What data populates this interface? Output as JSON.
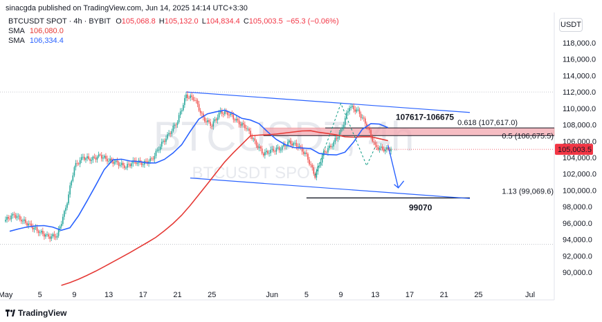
{
  "header": {
    "publisher": "sinacgda published on TradingView.com, Jun 14, 2025 14:14 UTC+3:30"
  },
  "symbol": {
    "name": "BTCUSDT SPOT · 4h · BYBIT",
    "o_label": "O",
    "o": "105,068.8",
    "h_label": "H",
    "h": "105,132.0",
    "l_label": "L",
    "l": "104,834.4",
    "c_label": "C",
    "c": "105,003.5",
    "change": "−65.3 (−0.06%)"
  },
  "indicators": [
    {
      "label": "SMA",
      "value": "106,080.0",
      "color": "#e53935"
    },
    {
      "label": "SMA",
      "value": "106,334.4",
      "color": "#2962ff"
    }
  ],
  "currency": "USDT",
  "watermark": {
    "main": "BTCUSDT, 4h",
    "sub": "BTCUSDT SPOT"
  },
  "brand": "TradingView",
  "chart_data": {
    "type": "candlestick",
    "ylim": [
      88500,
      120000
    ],
    "y_ticks": [
      90000,
      92000,
      94000,
      96000,
      98000,
      100000,
      102000,
      104000,
      106000,
      108000,
      110000,
      112000,
      114000,
      116000,
      118000
    ],
    "y_tick_labels": [
      "90,000.0",
      "92,000.0",
      "94,000.0",
      "96,000.0",
      "98,000.0",
      "100,000.0",
      "102,000.0",
      "104,000.0",
      "106,000.0",
      "108,000.0",
      "110,000.0",
      "112,000.0",
      "114,000.0",
      "116,000.0",
      "118,000.0"
    ],
    "x_start": "2025-05-01",
    "x_end": "2025-07-01",
    "x_ticks": [
      "2025-05-01",
      "2025-05-05",
      "2025-05-09",
      "2025-05-13",
      "2025-05-17",
      "2025-05-21",
      "2025-05-25",
      "2025-06-01",
      "2025-06-05",
      "2025-06-09",
      "2025-06-13",
      "2025-06-17",
      "2025-06-21",
      "2025-06-25",
      "2025-07-01"
    ],
    "x_tick_labels": [
      "May",
      "5",
      "9",
      "13",
      "17",
      "21",
      "25",
      "Jun",
      "5",
      "9",
      "13",
      "17",
      "21",
      "25",
      "Jul"
    ],
    "last_price": {
      "value": 105003.5,
      "label": "105,003.5",
      "color": "#f23645"
    },
    "closes": [
      [
        "2025-05-01",
        96400
      ],
      [
        "2025-05-02",
        97000
      ],
      [
        "2025-05-03",
        96300
      ],
      [
        "2025-05-04",
        95600
      ],
      [
        "2025-05-05",
        94900
      ],
      [
        "2025-05-06",
        94300
      ],
      [
        "2025-05-07",
        94500
      ],
      [
        "2025-05-08",
        97800
      ],
      [
        "2025-05-09",
        102900
      ],
      [
        "2025-05-10",
        104000
      ],
      [
        "2025-05-11",
        103800
      ],
      [
        "2025-05-12",
        104200
      ],
      [
        "2025-05-13",
        103700
      ],
      [
        "2025-05-14",
        103300
      ],
      [
        "2025-05-15",
        102900
      ],
      [
        "2025-05-16",
        103500
      ],
      [
        "2025-05-17",
        103300
      ],
      [
        "2025-05-18",
        103700
      ],
      [
        "2025-05-19",
        105500
      ],
      [
        "2025-05-20",
        106800
      ],
      [
        "2025-05-21",
        108500
      ],
      [
        "2025-05-22",
        111500
      ],
      [
        "2025-05-23",
        111200
      ],
      [
        "2025-05-24",
        108700
      ],
      [
        "2025-05-25",
        108000
      ],
      [
        "2025-05-26",
        109500
      ],
      [
        "2025-05-27",
        109400
      ],
      [
        "2025-05-28",
        108300
      ],
      [
        "2025-05-29",
        107700
      ],
      [
        "2025-05-30",
        105800
      ],
      [
        "2025-05-31",
        104500
      ],
      [
        "2025-06-01",
        104800
      ],
      [
        "2025-06-02",
        105200
      ],
      [
        "2025-06-03",
        105800
      ],
      [
        "2025-06-04",
        105500
      ],
      [
        "2025-06-05",
        104200
      ],
      [
        "2025-06-06",
        101800
      ],
      [
        "2025-06-07",
        104500
      ],
      [
        "2025-06-08",
        105600
      ],
      [
        "2025-06-09",
        107200
      ],
      [
        "2025-06-10",
        110300
      ],
      [
        "2025-06-11",
        109600
      ],
      [
        "2025-06-12",
        108000
      ],
      [
        "2025-06-13",
        105300
      ],
      [
        "2025-06-14",
        105003.5
      ]
    ],
    "sma_red_start": [
      "2025-05-07",
      88400
    ],
    "sma_blue_start": [
      "2025-05-01",
      95000
    ],
    "channel": {
      "upper": [
        [
          "2025-05-22",
          112000
        ],
        [
          "2025-06-24",
          109500
        ]
      ],
      "lower": [
        [
          "2025-05-22",
          101500
        ],
        [
          "2025-06-24",
          99000
        ]
      ]
    },
    "zone": {
      "from": 106675,
      "to": 107617,
      "start": "2025-05-31",
      "end": "2025-07-01",
      "color": "#f3a7b0"
    },
    "levels": [
      {
        "label": "0.618 (107,617.0)",
        "value": 107617
      },
      {
        "label": "0.5 (106,675.5)",
        "value": 106675.5
      },
      {
        "label": "1.13 (99,069.6)",
        "value": 99069.6
      }
    ],
    "support": {
      "value": 99070,
      "label": "99070",
      "start": "2025-06-05",
      "end": "2025-06-24"
    },
    "zone_label": "107617-106675",
    "projection": [
      [
        "2025-06-14",
        105500
      ],
      [
        "2025-06-16",
        100300
      ]
    ]
  }
}
